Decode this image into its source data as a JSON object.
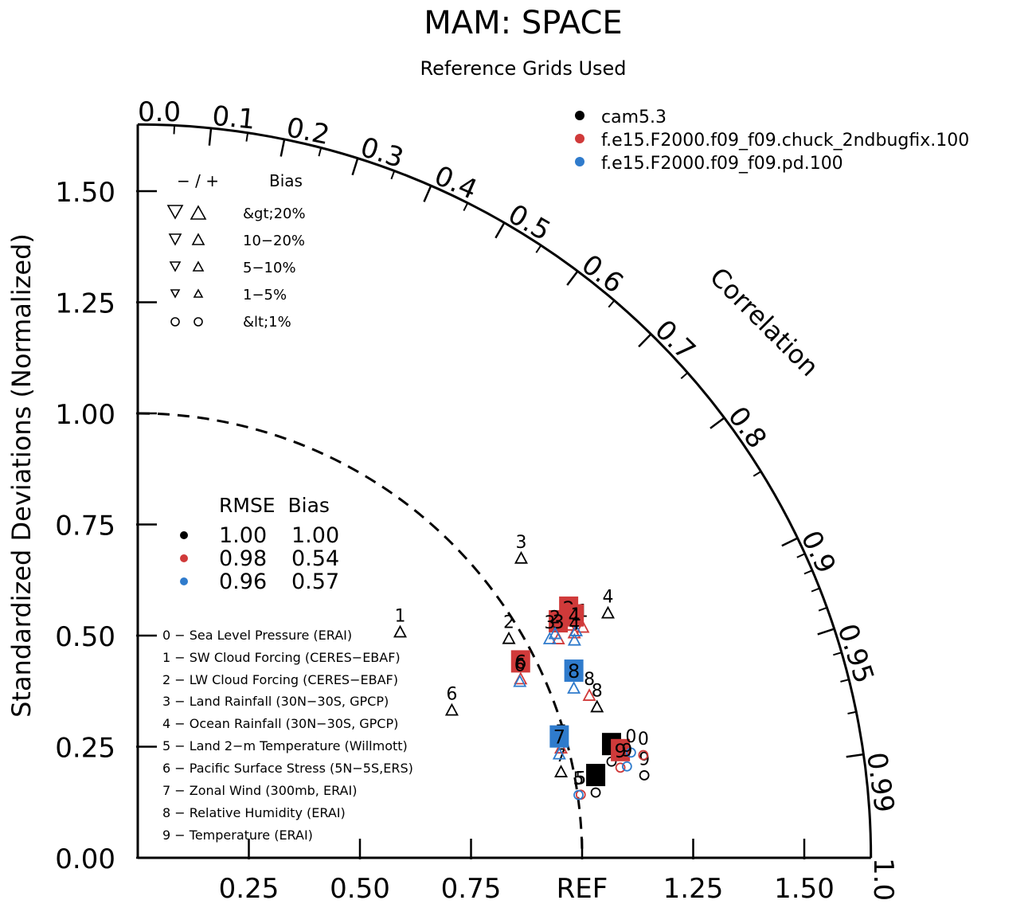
{
  "chart_data": {
    "type": "scatter",
    "subtype": "taylor-diagram",
    "title": "MAM: SPACE",
    "subtitle": "Reference Grids Used",
    "ylabel": "Standardized Deviations (Normalized)",
    "arc_label": "Correlation",
    "max_std": 1.65,
    "reference_std": 1.0,
    "reference_label": "REF",
    "y_ticks": [
      "0.00",
      "0.25",
      "0.50",
      "0.75",
      "1.00",
      "1.25",
      "1.50"
    ],
    "y_tick_values": [
      0,
      0.25,
      0.5,
      0.75,
      1.0,
      1.25,
      1.5
    ],
    "x_ticks": [
      "0.25",
      "0.50",
      "0.75",
      "REF",
      "1.25",
      "1.50"
    ],
    "x_tick_values": [
      0.25,
      0.5,
      0.75,
      1.0,
      1.25,
      1.5
    ],
    "correlation_ticks": [
      {
        "value": 0.0,
        "label": "0.0"
      },
      {
        "value": 0.1,
        "label": "0.1"
      },
      {
        "value": 0.2,
        "label": "0.2"
      },
      {
        "value": 0.3,
        "label": "0.3"
      },
      {
        "value": 0.4,
        "label": "0.4"
      },
      {
        "value": 0.5,
        "label": "0.5"
      },
      {
        "value": 0.6,
        "label": "0.6"
      },
      {
        "value": 0.7,
        "label": "0.7"
      },
      {
        "value": 0.8,
        "label": "0.8"
      },
      {
        "value": 0.9,
        "label": "0.9"
      },
      {
        "value": 0.95,
        "label": "0.95"
      },
      {
        "value": 0.99,
        "label": "0.99"
      },
      {
        "value": 1.0,
        "label": "1.0"
      }
    ],
    "series": [
      {
        "name": "cam5.3",
        "color": "#000000",
        "rmse": "1.00",
        "bias": "1.00",
        "points": [
          {
            "id": "0",
            "corr": 0.98,
            "std": 1.088,
            "shape": "circle"
          },
          {
            "id": "1",
            "corr": 0.758,
            "std": 0.779,
            "shape": "up-triangle"
          },
          {
            "id": "2",
            "corr": 0.861,
            "std": 0.97,
            "shape": "up-triangle"
          },
          {
            "id": "3",
            "corr": 0.788,
            "std": 1.095,
            "shape": "up-triangle"
          },
          {
            "id": "4",
            "corr": 0.887,
            "std": 1.193,
            "shape": "up-triangle"
          },
          {
            "id": "5",
            "corr": 0.99,
            "std": 1.041,
            "shape": "circle"
          },
          {
            "id": "6",
            "corr": 0.905,
            "std": 0.781,
            "shape": "up-triangle"
          },
          {
            "id": "7",
            "corr": 0.98,
            "std": 0.972,
            "shape": "up-triangle"
          },
          {
            "id": "8",
            "corr": 0.95,
            "std": 1.088,
            "shape": "up-triangle"
          },
          {
            "id": "9",
            "corr": 0.987,
            "std": 1.155,
            "shape": "circle"
          }
        ]
      },
      {
        "name": "f.e15.F2000.f09_f09.chuck_2ndbugfix.100",
        "color": "#d03a3a",
        "rmse": "0.98",
        "bias": "0.54",
        "points": [
          {
            "id": "0",
            "corr": 0.98,
            "std": 1.161,
            "shape": "circle"
          },
          {
            "id": "1",
            "corr": 0.888,
            "std": 1.128,
            "shape": "up-triangle"
          },
          {
            "id": "2",
            "corr": 0.88,
            "std": 1.102,
            "shape": "up-triangle"
          },
          {
            "id": "3",
            "corr": 0.887,
            "std": 1.067,
            "shape": "up-triangle"
          },
          {
            "id": "4",
            "corr": 0.889,
            "std": 1.105,
            "shape": "up-triangle"
          },
          {
            "id": "5",
            "corr": 0.99,
            "std": 1.007,
            "shape": "circle"
          },
          {
            "id": "6",
            "corr": 0.906,
            "std": 0.951,
            "shape": "up-triangle"
          },
          {
            "id": "7",
            "corr": 0.968,
            "std": 0.984,
            "shape": "up-triangle"
          },
          {
            "id": "8",
            "corr": 0.941,
            "std": 1.08,
            "shape": "up-triangle"
          },
          {
            "id": "9",
            "corr": 0.983,
            "std": 1.105,
            "shape": "circle"
          }
        ]
      },
      {
        "name": "f.e15.F2000.f09_f09.pd.100",
        "color": "#2f7bcc",
        "rmse": "0.96",
        "bias": "0.57",
        "points": [
          {
            "id": "0",
            "corr": 0.978,
            "std": 1.135,
            "shape": "circle"
          },
          {
            "id": "1",
            "corr": 0.888,
            "std": 1.111,
            "shape": "up-triangle"
          },
          {
            "id": "2",
            "corr": 0.881,
            "std": 1.066,
            "shape": "up-triangle"
          },
          {
            "id": "3",
            "corr": 0.883,
            "std": 1.05,
            "shape": "up-triangle"
          },
          {
            "id": "4",
            "corr": 0.895,
            "std": 1.098,
            "shape": "up-triangle"
          },
          {
            "id": "5",
            "corr": 0.99,
            "std": 1.002,
            "shape": "circle"
          },
          {
            "id": "6",
            "corr": 0.908,
            "std": 0.947,
            "shape": "up-triangle"
          },
          {
            "id": "7",
            "corr": 0.971,
            "std": 0.977,
            "shape": "up-triangle"
          },
          {
            "id": "8",
            "corr": 0.932,
            "std": 1.053,
            "shape": "up-triangle"
          },
          {
            "id": "9",
            "corr": 0.983,
            "std": 1.12,
            "shape": "circle"
          }
        ]
      }
    ],
    "ids_with_boxed_labels": {
      "f.e15.F2000.f09_f09.chuck_2ndbugfix.100": [
        "2",
        "3",
        "4",
        "6",
        "9"
      ],
      "f.e15.F2000.f09_f09.pd.100": [
        "7",
        "8"
      ],
      "cam5.3": [
        "0",
        "5"
      ]
    },
    "bias_legend": {
      "header_sign": "− / +",
      "header_label": "Bias",
      "rows": [
        "&gt;20%",
        "10−20%",
        "5−10%",
        "1−5%",
        "&lt;1%"
      ]
    },
    "rmse_legend": {
      "header": "RMSE  Bias"
    },
    "variables": [
      "0 − Sea Level Pressure (ERAI)",
      "1 − SW Cloud Forcing (CERES−EBAF)",
      "2 − LW Cloud Forcing (CERES−EBAF)",
      "3 − Land Rainfall (30N−30S, GPCP)",
      "4 − Ocean Rainfall (30N−30S, GPCP)",
      "5 − Land 2−m Temperature (Willmott)",
      "6 − Pacific Surface Stress (5N−5S,ERS)",
      "7 − Zonal Wind (300mb, ERAI)",
      "8 − Relative Humidity (ERAI)",
      "9 − Temperature (ERAI)"
    ]
  }
}
